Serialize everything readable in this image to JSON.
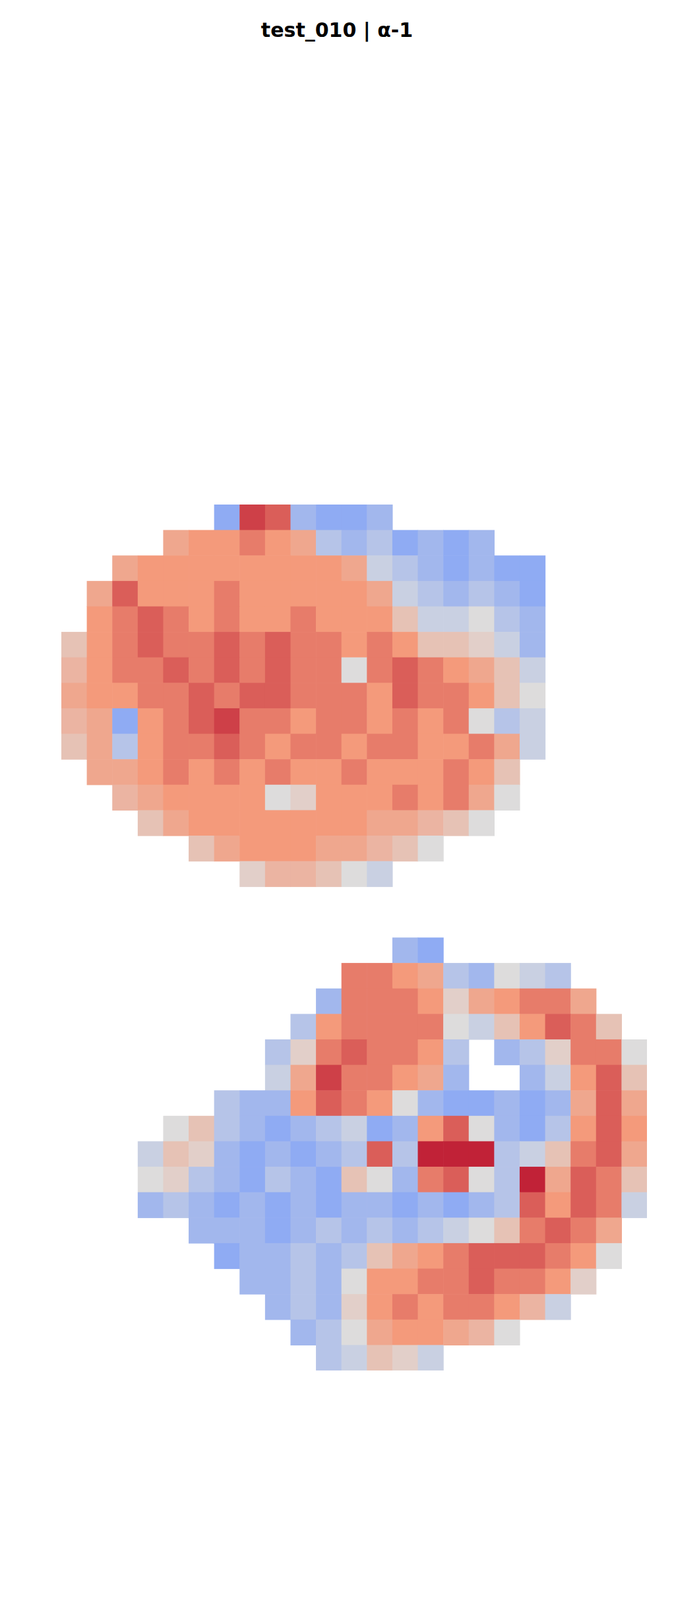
{
  "chart_data": {
    "type": "heatmap",
    "title": "test_010 | α-1",
    "color_range": [
      0,
      1
    ],
    "tick_labels": false,
    "cells": [
      [
        null,
        null,
        null,
        null,
        null,
        null,
        0.3,
        0.9,
        0.85,
        0.35,
        0.3,
        0.3,
        0.35,
        null,
        null,
        null,
        null,
        null,
        null,
        null,
        null,
        null,
        null
      ],
      [
        null,
        null,
        null,
        null,
        0.7,
        0.75,
        0.75,
        0.8,
        0.75,
        0.7,
        0.4,
        0.35,
        0.4,
        0.3,
        0.35,
        0.3,
        0.35,
        null,
        null,
        null,
        null,
        null,
        null
      ],
      [
        null,
        null,
        0.7,
        0.75,
        0.75,
        0.75,
        0.75,
        0.75,
        0.75,
        0.75,
        0.75,
        0.7,
        0.45,
        0.4,
        0.35,
        0.3,
        0.35,
        0.3,
        0.3,
        null,
        null,
        null,
        null
      ],
      [
        null,
        0.7,
        0.85,
        0.75,
        0.75,
        0.75,
        0.8,
        0.75,
        0.75,
        0.75,
        0.75,
        0.75,
        0.7,
        0.45,
        0.4,
        0.35,
        0.4,
        0.35,
        0.3,
        null,
        null,
        null,
        null
      ],
      [
        null,
        0.75,
        0.8,
        0.85,
        0.8,
        0.75,
        0.8,
        0.75,
        0.75,
        0.8,
        0.75,
        0.75,
        0.75,
        0.6,
        0.45,
        0.45,
        0.5,
        0.4,
        0.35,
        null,
        null,
        null,
        null
      ],
      [
        0.6,
        0.75,
        0.8,
        0.85,
        0.8,
        0.8,
        0.85,
        0.8,
        0.85,
        0.8,
        0.8,
        0.75,
        0.8,
        0.75,
        0.6,
        0.6,
        0.55,
        0.45,
        0.35,
        null,
        null,
        null,
        null
      ],
      [
        0.65,
        0.75,
        0.8,
        0.8,
        0.85,
        0.8,
        0.85,
        0.8,
        0.85,
        0.8,
        0.8,
        0.5,
        0.8,
        0.85,
        0.8,
        0.75,
        0.7,
        0.6,
        0.45,
        null,
        null,
        null,
        null
      ],
      [
        0.7,
        0.75,
        0.75,
        0.8,
        0.8,
        0.85,
        0.8,
        0.85,
        0.85,
        0.8,
        0.8,
        0.8,
        0.75,
        0.85,
        0.8,
        0.8,
        0.75,
        0.6,
        0.5,
        null,
        null,
        null,
        null
      ],
      [
        0.65,
        0.7,
        0.3,
        0.75,
        0.8,
        0.85,
        0.9,
        0.8,
        0.8,
        0.75,
        0.8,
        0.8,
        0.75,
        0.8,
        0.75,
        0.8,
        0.5,
        0.4,
        0.45,
        null,
        null,
        null,
        null
      ],
      [
        0.6,
        0.7,
        0.4,
        0.75,
        0.8,
        0.8,
        0.85,
        0.8,
        0.75,
        0.8,
        0.8,
        0.75,
        0.8,
        0.8,
        0.75,
        0.75,
        0.8,
        0.7,
        0.45,
        null,
        null,
        null,
        null
      ],
      [
        null,
        0.7,
        0.7,
        0.75,
        0.8,
        0.75,
        0.8,
        0.75,
        0.8,
        0.75,
        0.75,
        0.8,
        0.75,
        0.75,
        0.75,
        0.8,
        0.75,
        0.6,
        null,
        null,
        null,
        null,
        null
      ],
      [
        null,
        null,
        0.65,
        0.7,
        0.75,
        0.75,
        0.75,
        0.75,
        0.5,
        0.55,
        0.75,
        0.75,
        0.75,
        0.8,
        0.75,
        0.8,
        0.7,
        0.5,
        null,
        null,
        null,
        null,
        null
      ],
      [
        null,
        null,
        null,
        0.6,
        0.7,
        0.75,
        0.75,
        0.75,
        0.75,
        0.75,
        0.75,
        0.75,
        0.7,
        0.7,
        0.65,
        0.6,
        0.5,
        null,
        null,
        null,
        null,
        null,
        null
      ],
      [
        null,
        null,
        null,
        null,
        null,
        0.6,
        0.7,
        0.75,
        0.75,
        0.75,
        0.7,
        0.7,
        0.65,
        0.6,
        0.5,
        null,
        null,
        null,
        null,
        null,
        null,
        null,
        null
      ],
      [
        null,
        null,
        null,
        null,
        null,
        null,
        null,
        0.55,
        0.65,
        0.65,
        0.6,
        0.5,
        0.45,
        null,
        null,
        null,
        null,
        null,
        null,
        null,
        null,
        null,
        null
      ],
      [
        null,
        null,
        null,
        null,
        null,
        null,
        null,
        null,
        null,
        null,
        null,
        null,
        null,
        null,
        null,
        null,
        null,
        null,
        null,
        null,
        null,
        null,
        null
      ],
      [
        null,
        null,
        null,
        null,
        null,
        null,
        null,
        null,
        null,
        null,
        null,
        null,
        null,
        null,
        null,
        null,
        null,
        null,
        null,
        null,
        null,
        null,
        null
      ],
      [
        null,
        null,
        null,
        null,
        null,
        null,
        null,
        null,
        null,
        null,
        null,
        null,
        null,
        0.35,
        0.3,
        null,
        null,
        null,
        null,
        null,
        null,
        null,
        null
      ],
      [
        null,
        null,
        null,
        null,
        null,
        null,
        null,
        null,
        null,
        null,
        null,
        0.8,
        0.8,
        0.75,
        0.7,
        0.4,
        0.35,
        0.5,
        0.45,
        0.4,
        null,
        null,
        null
      ],
      [
        null,
        null,
        null,
        null,
        null,
        null,
        null,
        null,
        null,
        null,
        0.35,
        0.8,
        0.8,
        0.8,
        0.75,
        0.55,
        0.7,
        0.75,
        0.8,
        0.8,
        0.7,
        null,
        null
      ],
      [
        null,
        null,
        null,
        null,
        null,
        null,
        null,
        null,
        null,
        0.4,
        0.75,
        0.8,
        0.8,
        0.8,
        0.8,
        0.5,
        0.45,
        0.6,
        0.75,
        0.85,
        0.8,
        0.6,
        null
      ],
      [
        null,
        null,
        null,
        null,
        null,
        null,
        null,
        null,
        0.4,
        0.55,
        0.8,
        0.85,
        0.8,
        0.8,
        0.75,
        0.4,
        null,
        0.35,
        0.4,
        0.55,
        0.8,
        0.8,
        0.5
      ],
      [
        null,
        null,
        null,
        null,
        null,
        null,
        null,
        null,
        0.45,
        0.7,
        0.9,
        0.8,
        0.8,
        0.75,
        0.7,
        0.35,
        null,
        null,
        0.35,
        0.45,
        0.75,
        0.85,
        0.6
      ],
      [
        null,
        null,
        null,
        null,
        null,
        null,
        0.4,
        0.35,
        0.35,
        0.75,
        0.85,
        0.8,
        0.75,
        0.5,
        0.35,
        0.3,
        0.3,
        0.35,
        0.3,
        0.35,
        0.7,
        0.85,
        0.7
      ],
      [
        null,
        null,
        null,
        null,
        0.5,
        0.6,
        0.4,
        0.35,
        0.3,
        0.35,
        0.4,
        0.45,
        0.3,
        0.35,
        0.75,
        0.85,
        0.5,
        0.35,
        0.3,
        0.4,
        0.75,
        0.85,
        0.75
      ],
      [
        null,
        null,
        null,
        0.45,
        0.6,
        0.55,
        0.35,
        0.3,
        0.35,
        0.3,
        0.35,
        0.4,
        0.85,
        0.4,
        0.95,
        0.95,
        0.95,
        0.4,
        0.45,
        0.6,
        0.8,
        0.85,
        0.7
      ],
      [
        null,
        null,
        null,
        0.5,
        0.55,
        0.4,
        0.35,
        0.3,
        0.4,
        0.35,
        0.3,
        0.6,
        0.5,
        0.35,
        0.8,
        0.85,
        0.5,
        0.4,
        0.95,
        0.7,
        0.85,
        0.8,
        0.6
      ],
      [
        null,
        null,
        null,
        0.35,
        0.4,
        0.35,
        0.3,
        0.35,
        0.3,
        0.35,
        0.3,
        0.35,
        0.35,
        0.3,
        0.35,
        0.3,
        0.35,
        0.4,
        0.85,
        0.75,
        0.85,
        0.8,
        0.45
      ],
      [
        null,
        null,
        null,
        null,
        null,
        0.35,
        0.35,
        0.35,
        0.3,
        0.35,
        0.4,
        0.35,
        0.4,
        0.35,
        0.4,
        0.45,
        0.5,
        0.6,
        0.8,
        0.85,
        0.8,
        0.7,
        null
      ],
      [
        null,
        null,
        null,
        null,
        null,
        null,
        0.3,
        0.35,
        0.35,
        0.4,
        0.35,
        0.4,
        0.6,
        0.7,
        0.75,
        0.8,
        0.85,
        0.85,
        0.85,
        0.8,
        0.75,
        0.5,
        null
      ],
      [
        null,
        null,
        null,
        null,
        null,
        null,
        null,
        0.35,
        0.35,
        0.4,
        0.35,
        0.5,
        0.75,
        0.75,
        0.8,
        0.8,
        0.85,
        0.8,
        0.8,
        0.75,
        0.55,
        null,
        null
      ],
      [
        null,
        null,
        null,
        null,
        null,
        null,
        null,
        null,
        0.35,
        0.4,
        0.35,
        0.55,
        0.75,
        0.8,
        0.75,
        0.8,
        0.8,
        0.75,
        0.65,
        0.45,
        null,
        null,
        null
      ],
      [
        null,
        null,
        null,
        null,
        null,
        null,
        null,
        null,
        null,
        0.35,
        0.4,
        0.5,
        0.7,
        0.75,
        0.75,
        0.7,
        0.65,
        0.5,
        null,
        null,
        null,
        null,
        null
      ],
      [
        null,
        null,
        null,
        null,
        null,
        null,
        null,
        null,
        null,
        null,
        0.4,
        0.45,
        0.6,
        0.55,
        0.45,
        null,
        null,
        null,
        null,
        null,
        null,
        null,
        null
      ]
    ]
  }
}
